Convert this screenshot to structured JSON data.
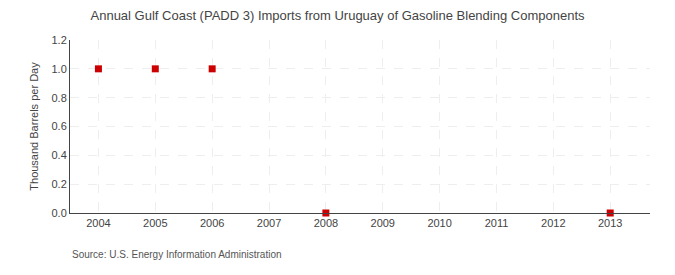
{
  "chart_data": {
    "type": "scatter",
    "title": "Annual Gulf Coast (PADD 3) Imports from Uruguay of Gasoline Blending Components",
    "y_label": "Thousand Barrels per Day",
    "annotations": [
      "Source: U.S. Energy Information Administration"
    ],
    "x": [
      2004,
      2005,
      2006,
      2008,
      2013
    ],
    "values": [
      1.0,
      1.0,
      1.0,
      0.0,
      0.0
    ],
    "color": "#cc0000",
    "marker": "square",
    "xlim": [
      2003.5,
      2013.7
    ],
    "xticks": [
      2004,
      2005,
      2006,
      2007,
      2008,
      2009,
      2010,
      2011,
      2012,
      2013
    ],
    "ylim": [
      0.0,
      1.2
    ],
    "yticks": [
      {
        "value": 0.0,
        "label": "0.0"
      },
      {
        "value": 0.2,
        "label": "0.2"
      },
      {
        "value": 0.4,
        "label": "0.4"
      },
      {
        "value": 0.6,
        "label": "0.6"
      },
      {
        "value": 0.8,
        "label": "0.8"
      },
      {
        "value": 1.0,
        "label": "1.0"
      },
      {
        "value": 1.2,
        "label": "1.2"
      }
    ],
    "grid": true
  }
}
